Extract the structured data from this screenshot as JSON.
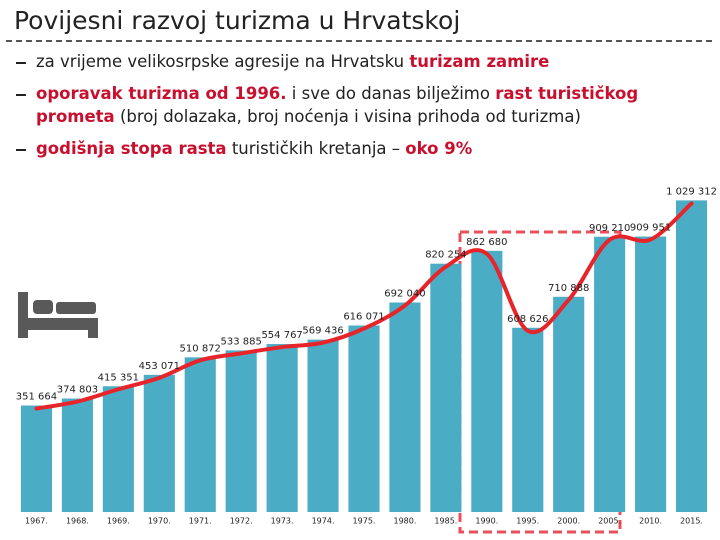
{
  "slide": {
    "title": "Povijesni razvoj turizma u Hrvatskoj",
    "bullets": [
      [
        {
          "text": "za vrijeme velikosrpske agresije na Hrvatsku "
        },
        {
          "text": "turizam zamire",
          "highlight": true
        }
      ],
      [
        {
          "text": "oporavak turizma od 1996.",
          "highlight": true
        },
        {
          "text": " i sve do danas bilježimo "
        },
        {
          "text": "rast turističkog prometa",
          "highlight": true
        },
        {
          "text": " (broj dolazaka, broj noćenja i visina prihoda od turizma)"
        }
      ],
      [
        {
          "text": "godišnja stopa rasta",
          "highlight": true
        },
        {
          "text": " turističkih kretanja – "
        },
        {
          "text": "oko 9%",
          "highlight": true
        }
      ]
    ]
  },
  "chart_data": {
    "type": "bar",
    "categories": [
      "1967.",
      "1968.",
      "1969.",
      "1970.",
      "1971.",
      "1972.",
      "1973.",
      "1974.",
      "1975.",
      "1980.",
      "1985.",
      "1990.",
      "1995.",
      "2000.",
      "2005.",
      "2010.",
      "2015."
    ],
    "values": [
      351664,
      374803,
      415351,
      453071,
      510872,
      533885,
      554767,
      569436,
      616071,
      692040,
      820254,
      862680,
      608626,
      710888,
      909210,
      909951,
      1029312
    ],
    "value_labels": [
      "351 664",
      "374 803",
      "415 351",
      "453 071",
      "510 872",
      "533 885",
      "554 767",
      "569 436",
      "616 071",
      "692 040",
      "820 254",
      "862 680",
      "608 626",
      "710 888",
      "909 210",
      "909 951",
      "1 029 312"
    ],
    "color": "#4bacc6",
    "line_color": "#e8242b",
    "ylim": [
      0,
      1100000
    ]
  }
}
